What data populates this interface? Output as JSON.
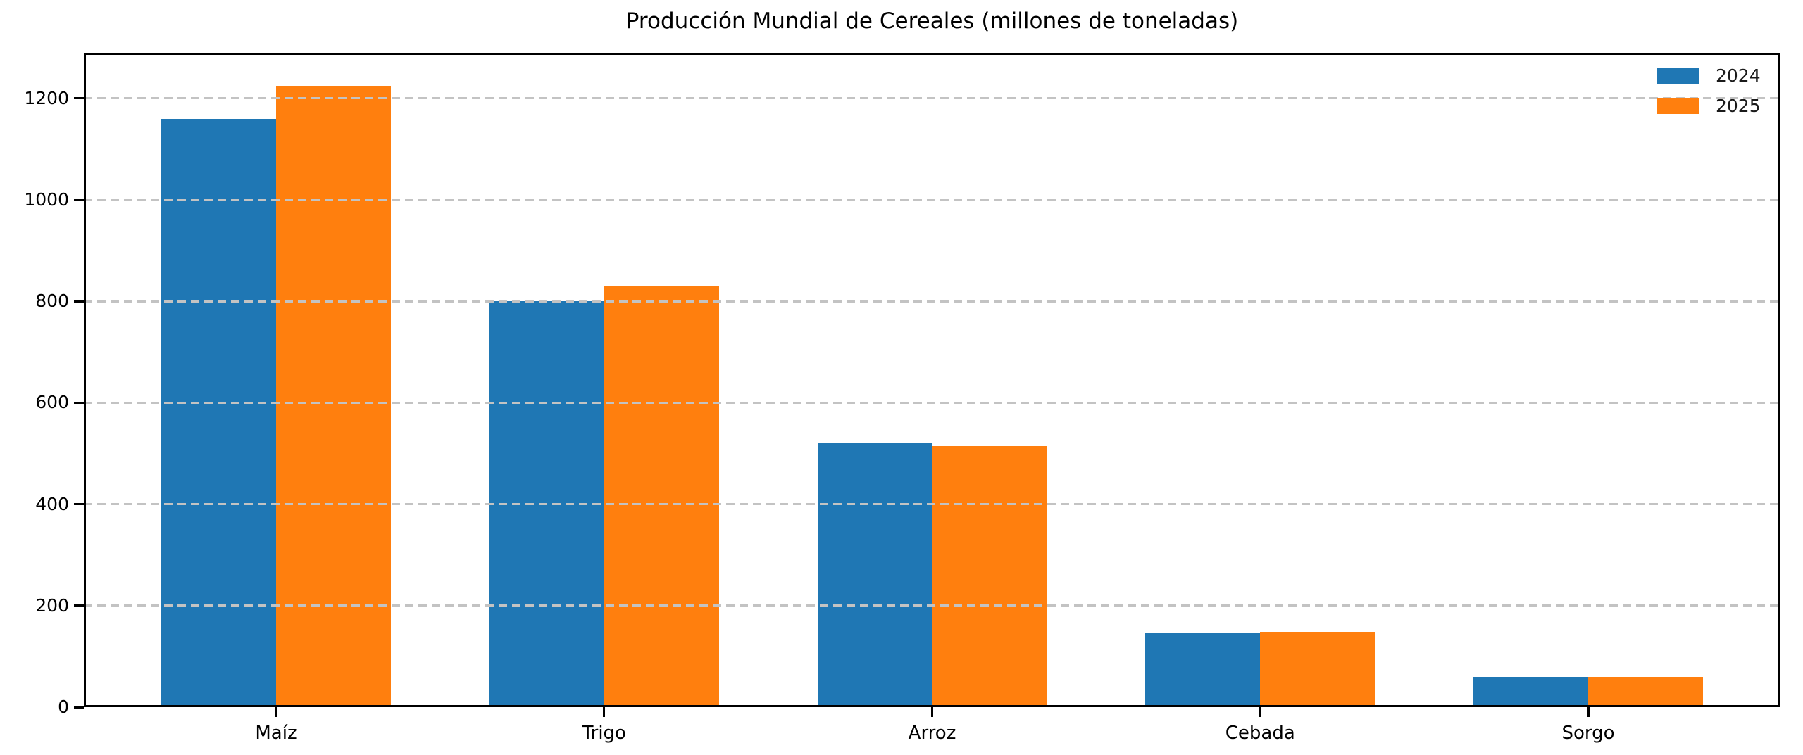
{
  "chart_data": {
    "type": "bar",
    "title": "Producción Mundial de Cereales (millones de toneladas)",
    "categories": [
      "Maíz",
      "Trigo",
      "Arroz",
      "Cebada",
      "Sorgo"
    ],
    "series": [
      {
        "name": "2024",
        "color": "#1f77b4",
        "values": [
          1160,
          800,
          520,
          145,
          59
        ]
      },
      {
        "name": "2025",
        "color": "#ff7f0e",
        "values": [
          1225,
          830,
          515,
          148,
          60
        ]
      }
    ],
    "xlabel": "",
    "ylabel": "",
    "ylim": [
      0,
      1290
    ],
    "yticks": [
      0,
      200,
      400,
      600,
      800,
      1000,
      1200
    ],
    "grid": {
      "axis": "y",
      "style": "dashed",
      "color": "#c3c3c3"
    },
    "legend": {
      "position": "top-right",
      "frame": false
    },
    "background": "#ffffff",
    "spine_color": "#000000"
  }
}
